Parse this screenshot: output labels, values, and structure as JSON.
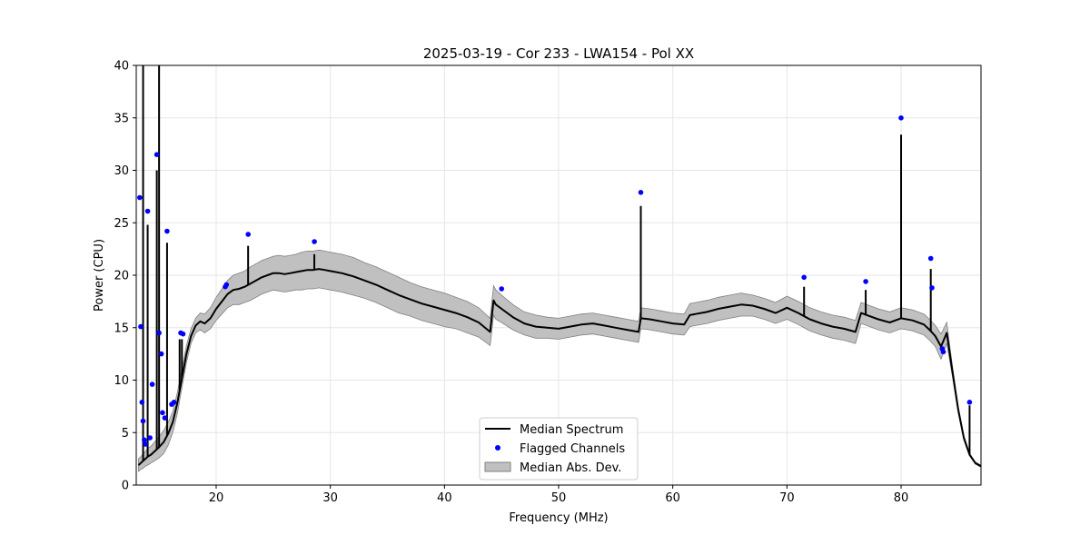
{
  "chart_data": {
    "type": "line",
    "title": "2025-03-19 - Cor 233 - LWA154 - Pol XX",
    "xlabel": "Frequency (MHz)",
    "ylabel": "Power (CPU)",
    "xlim": [
      13,
      87
    ],
    "ylim": [
      0,
      40
    ],
    "xticks": [
      20,
      30,
      40,
      50,
      60,
      70,
      80
    ],
    "yticks": [
      0,
      5,
      10,
      15,
      20,
      25,
      30,
      35,
      40
    ],
    "grid": true,
    "legend_position": "bottom-center",
    "colors": {
      "median": "#000000",
      "flagged": "#0000ff",
      "mad_fill": "#c0c0c0",
      "mad_edge": "#808080",
      "grid": "#e6e6e6"
    },
    "series": [
      {
        "name": "Median Spectrum",
        "kind": "line",
        "x": [
          13.2,
          13.4,
          13.6,
          13.8,
          14.0,
          14.3,
          14.6,
          15.0,
          15.4,
          15.8,
          16.2,
          16.6,
          17.0,
          17.4,
          17.8,
          18.2,
          18.6,
          19.0,
          19.5,
          20.0,
          20.5,
          21.0,
          21.5,
          22.0,
          22.5,
          23.0,
          23.5,
          24.0,
          24.5,
          25.0,
          25.5,
          26.0,
          26.5,
          27.0,
          27.5,
          28.0,
          28.5,
          29.0,
          29.5,
          30.0,
          31.0,
          32.0,
          33.0,
          34.0,
          35.0,
          36.0,
          37.0,
          38.0,
          39.0,
          40.0,
          41.0,
          42.0,
          43.0,
          44.0,
          44.3,
          44.5,
          45.0,
          46.0,
          47.0,
          48.0,
          49.0,
          50.0,
          51.0,
          52.0,
          53.0,
          54.0,
          55.0,
          56.0,
          57.0,
          57.2,
          58.0,
          59.0,
          60.0,
          61.0,
          61.5,
          62.0,
          63.0,
          64.0,
          65.0,
          66.0,
          67.0,
          68.0,
          69.0,
          70.0,
          71.0,
          72.0,
          73.0,
          74.0,
          75.0,
          76.0,
          76.5,
          77.0,
          78.0,
          79.0,
          80.0,
          81.0,
          82.0,
          82.5,
          83.0,
          83.5,
          84.0,
          84.5,
          85.0,
          85.5,
          86.0,
          86.5,
          87.0
        ],
        "y": [
          1.9,
          2.1,
          2.3,
          2.5,
          2.7,
          2.9,
          3.2,
          3.6,
          4.1,
          4.9,
          6.0,
          7.8,
          10.2,
          12.5,
          14.2,
          15.2,
          15.6,
          15.4,
          15.9,
          16.8,
          17.5,
          18.2,
          18.6,
          18.7,
          18.9,
          19.2,
          19.5,
          19.8,
          20.0,
          20.2,
          20.2,
          20.1,
          20.2,
          20.3,
          20.4,
          20.5,
          20.5,
          20.6,
          20.5,
          20.4,
          20.2,
          19.9,
          19.5,
          19.1,
          18.6,
          18.1,
          17.7,
          17.3,
          17.0,
          16.7,
          16.4,
          16.0,
          15.5,
          14.6,
          17.6,
          17.2,
          16.8,
          16.0,
          15.4,
          15.1,
          15.0,
          14.9,
          15.1,
          15.3,
          15.4,
          15.2,
          15.0,
          14.8,
          14.6,
          15.9,
          15.8,
          15.6,
          15.4,
          15.3,
          16.2,
          16.3,
          16.5,
          16.8,
          17.0,
          17.2,
          17.1,
          16.8,
          16.4,
          16.9,
          16.4,
          15.8,
          15.4,
          15.1,
          14.9,
          14.6,
          16.4,
          16.2,
          15.8,
          15.5,
          15.9,
          15.7,
          15.3,
          14.8,
          14.2,
          13.2,
          14.5,
          10.8,
          7.2,
          4.5,
          2.9,
          2.1,
          1.8
        ]
      },
      {
        "name": "Flagged Channels",
        "kind": "scatter",
        "x": [
          13.3,
          13.4,
          13.5,
          13.6,
          13.7,
          13.8,
          14.0,
          14.2,
          14.4,
          14.8,
          15.0,
          15.2,
          15.3,
          15.5,
          15.7,
          16.1,
          16.3,
          16.9,
          17.1,
          20.8,
          20.9,
          22.8,
          28.6,
          45.0,
          57.2,
          71.5,
          76.9,
          80.0,
          82.6,
          82.7,
          83.6,
          83.7,
          86.0
        ],
        "y": [
          27.4,
          15.1,
          7.9,
          6.1,
          4.3,
          3.9,
          26.1,
          4.5,
          9.6,
          31.5,
          14.5,
          12.5,
          6.9,
          6.4,
          24.2,
          7.7,
          7.9,
          14.5,
          14.4,
          18.9,
          19.1,
          23.9,
          23.2,
          18.7,
          27.9,
          19.8,
          19.4,
          35.0,
          21.6,
          18.8,
          13.0,
          12.7,
          7.9
        ]
      }
    ],
    "median_abs_dev": {
      "name": "Median Abs. Dev.",
      "kind": "band",
      "width": [
        0.6,
        0.6,
        0.7,
        0.7,
        0.8,
        0.8,
        0.9,
        1.0,
        1.1,
        1.1,
        1.0,
        1.0,
        0.9,
        0.8,
        0.7,
        0.7,
        0.8,
        0.9,
        1.0,
        1.1,
        1.2,
        1.3,
        1.4,
        1.5,
        1.5,
        1.6,
        1.6,
        1.6,
        1.6,
        1.6,
        1.7,
        1.7,
        1.7,
        1.7,
        1.8,
        1.8,
        1.8,
        1.8,
        1.8,
        1.8,
        1.8,
        1.8,
        1.7,
        1.7,
        1.7,
        1.7,
        1.6,
        1.6,
        1.6,
        1.6,
        1.5,
        1.5,
        1.4,
        1.3,
        1.4,
        1.4,
        1.3,
        1.2,
        1.1,
        1.1,
        1.0,
        1.0,
        1.0,
        1.0,
        1.0,
        1.0,
        1.0,
        1.0,
        1.0,
        1.0,
        1.0,
        1.0,
        1.0,
        1.0,
        1.1,
        1.1,
        1.1,
        1.1,
        1.1,
        1.1,
        1.0,
        1.0,
        1.0,
        1.1,
        1.1,
        1.1,
        1.1,
        1.1,
        1.1,
        1.1,
        1.0,
        1.0,
        1.0,
        1.0,
        1.0,
        1.0,
        1.0,
        1.0,
        1.0,
        1.2,
        1.0,
        0.5,
        0.3,
        0.2,
        0.1,
        0.1,
        0.1
      ]
    },
    "spikes": [
      {
        "x": 13.6,
        "y": 40.0
      },
      {
        "x": 14.0,
        "y": 24.8
      },
      {
        "x": 14.8,
        "y": 30.0
      },
      {
        "x": 15.0,
        "y": 40.0
      },
      {
        "x": 15.7,
        "y": 23.1
      },
      {
        "x": 16.8,
        "y": 13.9
      },
      {
        "x": 17.0,
        "y": 13.9
      },
      {
        "x": 22.8,
        "y": 22.8
      },
      {
        "x": 28.6,
        "y": 22.0
      },
      {
        "x": 57.2,
        "y": 26.6
      },
      {
        "x": 71.5,
        "y": 18.9
      },
      {
        "x": 76.9,
        "y": 18.6
      },
      {
        "x": 80.0,
        "y": 33.4
      },
      {
        "x": 82.6,
        "y": 20.6
      },
      {
        "x": 86.0,
        "y": 7.6
      }
    ],
    "legend": [
      "Median Spectrum",
      "Flagged Channels",
      "Median Abs. Dev."
    ]
  }
}
